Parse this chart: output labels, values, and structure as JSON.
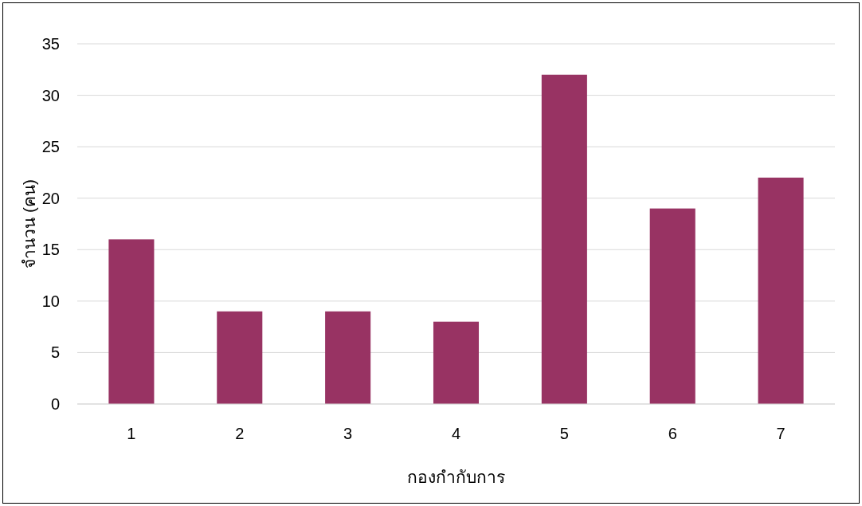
{
  "chart_data": {
    "type": "bar",
    "xlabel": "กองกำกับการ",
    "ylabel": "จำนวน (คน)",
    "categories": [
      "1",
      "2",
      "3",
      "4",
      "5",
      "6",
      "7"
    ],
    "values": [
      16,
      9,
      9,
      8,
      32,
      19,
      22
    ],
    "color": "#983363",
    "ylim": [
      0,
      35
    ],
    "yticks": [
      0,
      5,
      10,
      15,
      20,
      25,
      30,
      35
    ],
    "grid": "y"
  }
}
